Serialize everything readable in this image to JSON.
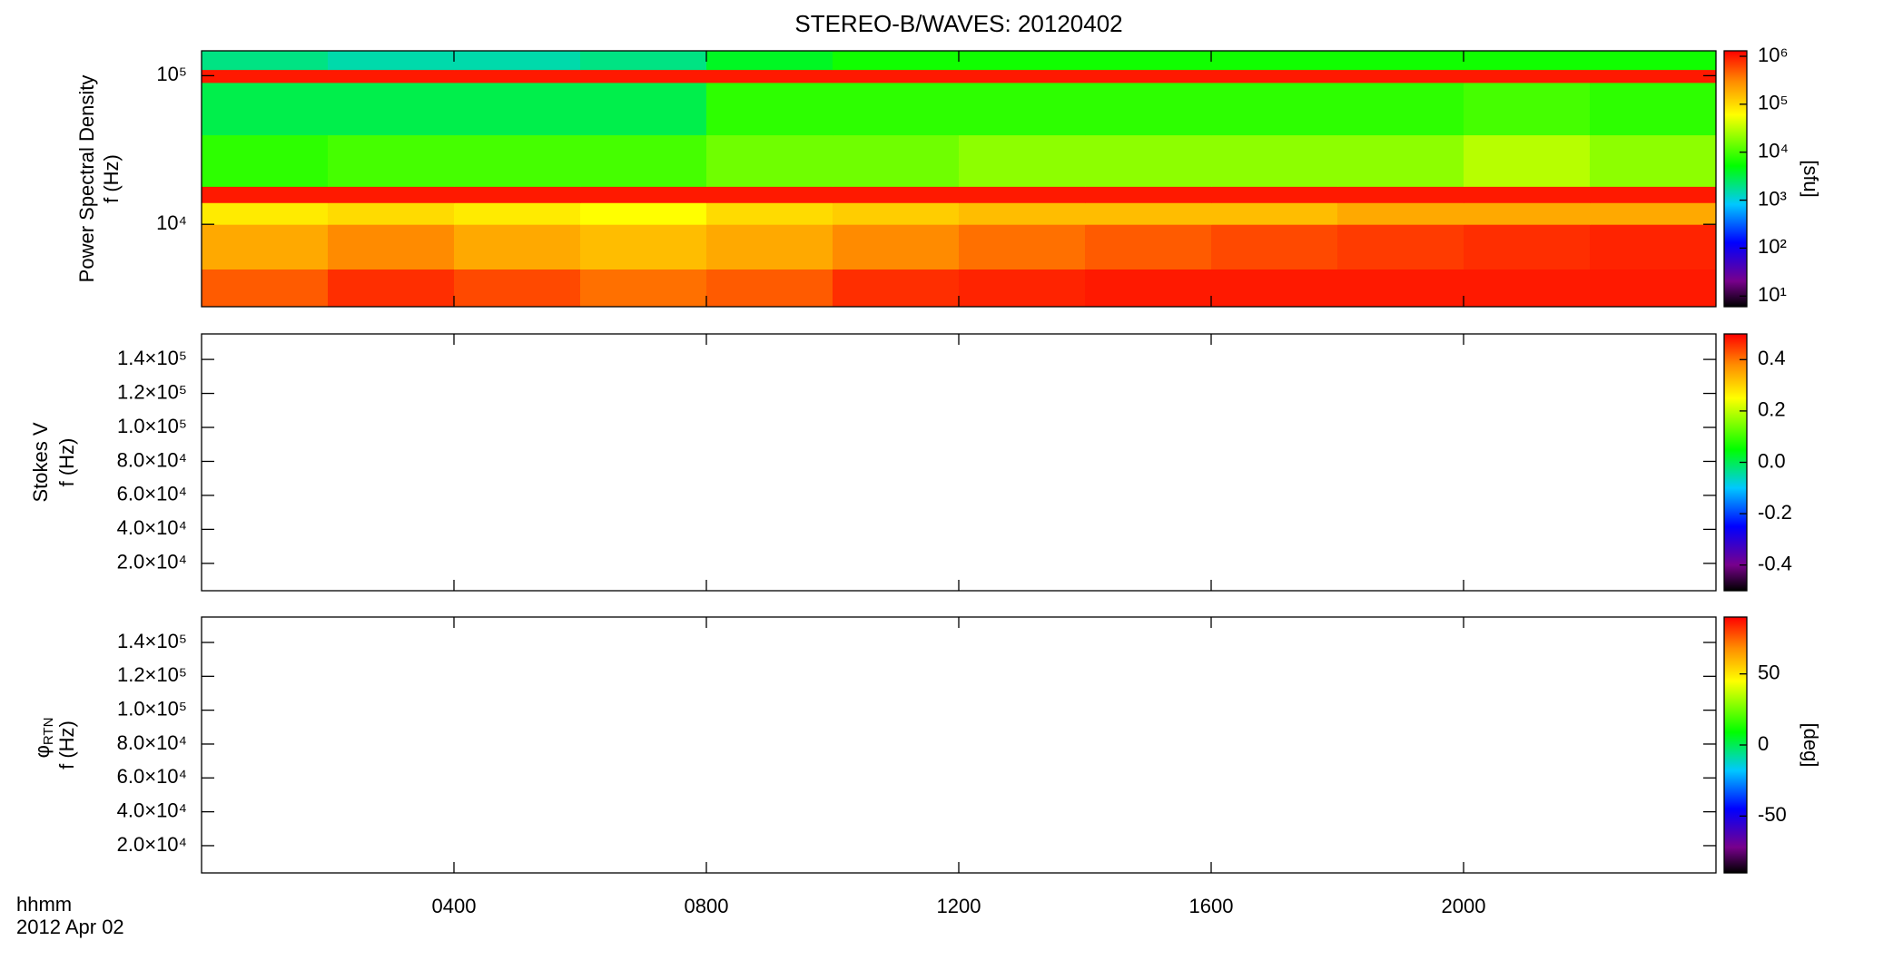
{
  "chart_data": [
    {
      "type": "heatmap",
      "title": "STEREO-B/WAVES: 20120402",
      "ylabel": "Power Spectral Density",
      "ylabel2": "f (Hz)",
      "xlim": [
        0,
        24
      ],
      "xticks": [
        {
          "value": 4,
          "label": "0400"
        },
        {
          "value": 8,
          "label": "0800"
        },
        {
          "value": 12,
          "label": "1200"
        },
        {
          "value": 16,
          "label": "1600"
        },
        {
          "value": 20,
          "label": "2000"
        }
      ],
      "yscale": "log",
      "ylim": [
        2790,
        147000
      ],
      "yticks": [
        {
          "value": 10000,
          "label": "10⁴"
        },
        {
          "value": 100000,
          "label": "10⁵"
        }
      ],
      "x_bins": [
        0,
        2,
        4,
        6,
        8,
        10,
        12,
        14,
        16,
        18,
        20,
        22,
        24
      ],
      "y_bins": [
        2790,
        5000,
        10000,
        14000,
        18000,
        40000,
        90000,
        110000,
        147000
      ],
      "values": [
        [
          500000,
          800000,
          600000,
          400000,
          500000,
          800000,
          900000,
          1000000,
          1000000,
          1000000,
          1000000,
          1000000
        ],
        [
          200000,
          300000,
          200000,
          150000,
          200000,
          300000,
          400000,
          500000,
          600000,
          700000,
          800000,
          900000
        ],
        [
          80000,
          100000,
          80000,
          60000,
          100000,
          120000,
          150000,
          150000,
          150000,
          200000,
          200000,
          200000
        ],
        [
          1000000,
          1000000,
          1000000,
          1000000,
          1000000,
          1000000,
          1000000,
          1000000,
          1000000,
          1000000,
          1000000,
          1000000
        ],
        [
          8000,
          10000,
          10000,
          10000,
          15000,
          15000,
          20000,
          20000,
          20000,
          20000,
          30000,
          20000
        ],
        [
          3000,
          3000,
          3000,
          3000,
          8000,
          8000,
          8000,
          8000,
          8000,
          8000,
          10000,
          8000
        ],
        [
          1000000,
          1000000,
          1000000,
          1000000,
          1000000,
          1000000,
          1000000,
          1000000,
          1000000,
          1000000,
          1000000,
          1000000
        ],
        [
          2000,
          1500,
          1500,
          2000,
          4000,
          6000,
          6000,
          6000,
          6000,
          6000,
          6000,
          6000
        ]
      ],
      "colormap": "rainbow",
      "colorbar": {
        "label": "[sfu]",
        "scale": "log",
        "lim": [
          6,
          1300000
        ],
        "ticks": [
          {
            "value": 10,
            "label": "10¹"
          },
          {
            "value": 100,
            "label": "10²"
          },
          {
            "value": 1000,
            "label": "10³"
          },
          {
            "value": 10000,
            "label": "10⁴"
          },
          {
            "value": 100000,
            "label": "10⁵"
          },
          {
            "value": 1000000,
            "label": "10⁶"
          }
        ]
      }
    },
    {
      "type": "heatmap",
      "ylabel": "Stokes V",
      "ylabel2": "f (Hz)",
      "xlim": [
        0,
        24
      ],
      "xticks": [
        {
          "value": 4,
          "label": "0400"
        },
        {
          "value": 8,
          "label": "0800"
        },
        {
          "value": 12,
          "label": "1200"
        },
        {
          "value": 16,
          "label": "1600"
        },
        {
          "value": 20,
          "label": "2000"
        }
      ],
      "yscale": "linear",
      "ylim": [
        3900,
        155000
      ],
      "yticks": [
        {
          "value": 20000,
          "label": "2.0×10⁴"
        },
        {
          "value": 40000,
          "label": "4.0×10⁴"
        },
        {
          "value": 60000,
          "label": "6.0×10⁴"
        },
        {
          "value": 80000,
          "label": "8.0×10⁴"
        },
        {
          "value": 100000,
          "label": "1.0×10⁵"
        },
        {
          "value": 120000,
          "label": "1.2×10⁵"
        },
        {
          "value": 140000,
          "label": "1.4×10⁵"
        }
      ],
      "colormap": "rainbow",
      "colorbar": {
        "scale": "linear",
        "lim": [
          -0.5,
          0.5
        ],
        "ticks": [
          -0.4,
          -0.2,
          {
            "value": 0,
            "label": "0.0"
          },
          0.2,
          0.4
        ]
      }
    },
    {
      "type": "heatmap",
      "ylabel_symbol": "φ",
      "ylabel_subscript": "RTN",
      "ylabel2": "f (Hz)",
      "xlabel": "hhmm",
      "date": "2012 Apr 02",
      "xlim": [
        0,
        24
      ],
      "xticks": [
        {
          "value": 4,
          "label": "0400"
        },
        {
          "value": 8,
          "label": "0800"
        },
        {
          "value": 12,
          "label": "1200"
        },
        {
          "value": 16,
          "label": "1600"
        },
        {
          "value": 20,
          "label": "2000"
        }
      ],
      "yscale": "linear",
      "ylim": [
        3900,
        155000
      ],
      "yticks": [
        {
          "value": 20000,
          "label": "2.0×10⁴"
        },
        {
          "value": 40000,
          "label": "4.0×10⁴"
        },
        {
          "value": 60000,
          "label": "6.0×10⁴"
        },
        {
          "value": 80000,
          "label": "8.0×10⁴"
        },
        {
          "value": 100000,
          "label": "1.0×10⁵"
        },
        {
          "value": 120000,
          "label": "1.2×10⁵"
        },
        {
          "value": 140000,
          "label": "1.4×10⁵"
        }
      ],
      "colormap": "rainbow",
      "colorbar": {
        "label": "[deg]",
        "scale": "linear",
        "lim": [
          -90,
          90
        ],
        "ticks": [
          -50,
          0,
          50
        ]
      }
    }
  ]
}
